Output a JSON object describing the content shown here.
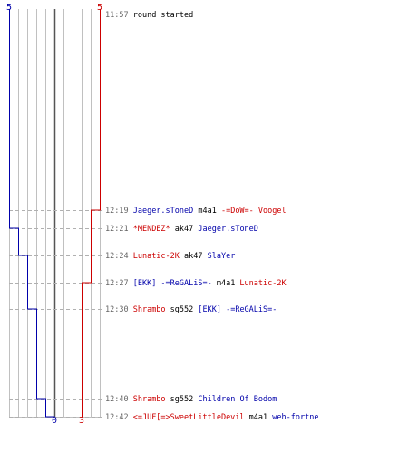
{
  "colors": {
    "team_blue": "#0000aa",
    "team_red": "#cc0000",
    "grid": "#c0c0c0",
    "center_line": "#555555",
    "dashed_line": "#b0b0b0",
    "time_text": "#666666",
    "neutral_text": "#000000"
  },
  "scores": {
    "blue_start": "5",
    "red_start": "5",
    "blue_end": "0",
    "red_end": "3"
  },
  "events": [
    {
      "time": "11:57",
      "parts": [
        {
          "text": "round started",
          "color": "neutral"
        }
      ],
      "blue_remaining": 5,
      "red_remaining": 5
    },
    {
      "time": "12:19",
      "parts": [
        {
          "text": "Jaeger.sToneD",
          "color": "blue"
        },
        {
          "text": "m4a1",
          "color": "neutral"
        },
        {
          "text": "-=DoW=- Voogel",
          "color": "red"
        }
      ],
      "blue_remaining": 5,
      "red_remaining": 4
    },
    {
      "time": "12:21",
      "parts": [
        {
          "text": "*MENDEZ*",
          "color": "red"
        },
        {
          "text": "ak47",
          "color": "neutral"
        },
        {
          "text": "Jaeger.sToneD",
          "color": "blue"
        }
      ],
      "blue_remaining": 4,
      "red_remaining": 4
    },
    {
      "time": "12:24",
      "parts": [
        {
          "text": "Lunatic-2K",
          "color": "red"
        },
        {
          "text": "ak47",
          "color": "neutral"
        },
        {
          "text": "SlaYer",
          "color": "blue"
        }
      ],
      "blue_remaining": 3,
      "red_remaining": 4
    },
    {
      "time": "12:27",
      "parts": [
        {
          "text": "[EKK] -=ReGALiS=-",
          "color": "blue"
        },
        {
          "text": "m4a1",
          "color": "neutral"
        },
        {
          "text": "Lunatic-2K",
          "color": "red"
        }
      ],
      "blue_remaining": 3,
      "red_remaining": 3
    },
    {
      "time": "12:30",
      "parts": [
        {
          "text": "Shrambo",
          "color": "red"
        },
        {
          "text": "sg552",
          "color": "neutral"
        },
        {
          "text": "[EKK] -=ReGALiS=-",
          "color": "blue"
        }
      ],
      "blue_remaining": 2,
      "red_remaining": 3
    },
    {
      "time": "12:40",
      "parts": [
        {
          "text": "Shrambo",
          "color": "red"
        },
        {
          "text": "sg552",
          "color": "neutral"
        },
        {
          "text": "Children Of Bodom",
          "color": "blue"
        }
      ],
      "blue_remaining": 1,
      "red_remaining": 3
    },
    {
      "time": "12:42",
      "parts": [
        {
          "text": "<=JUF[=>SweetLittleDevil",
          "color": "red"
        },
        {
          "text": "m4a1",
          "color": "neutral"
        },
        {
          "text": "weh-fortne",
          "color": "blue"
        }
      ],
      "blue_remaining": 0,
      "red_remaining": 3
    }
  ]
}
